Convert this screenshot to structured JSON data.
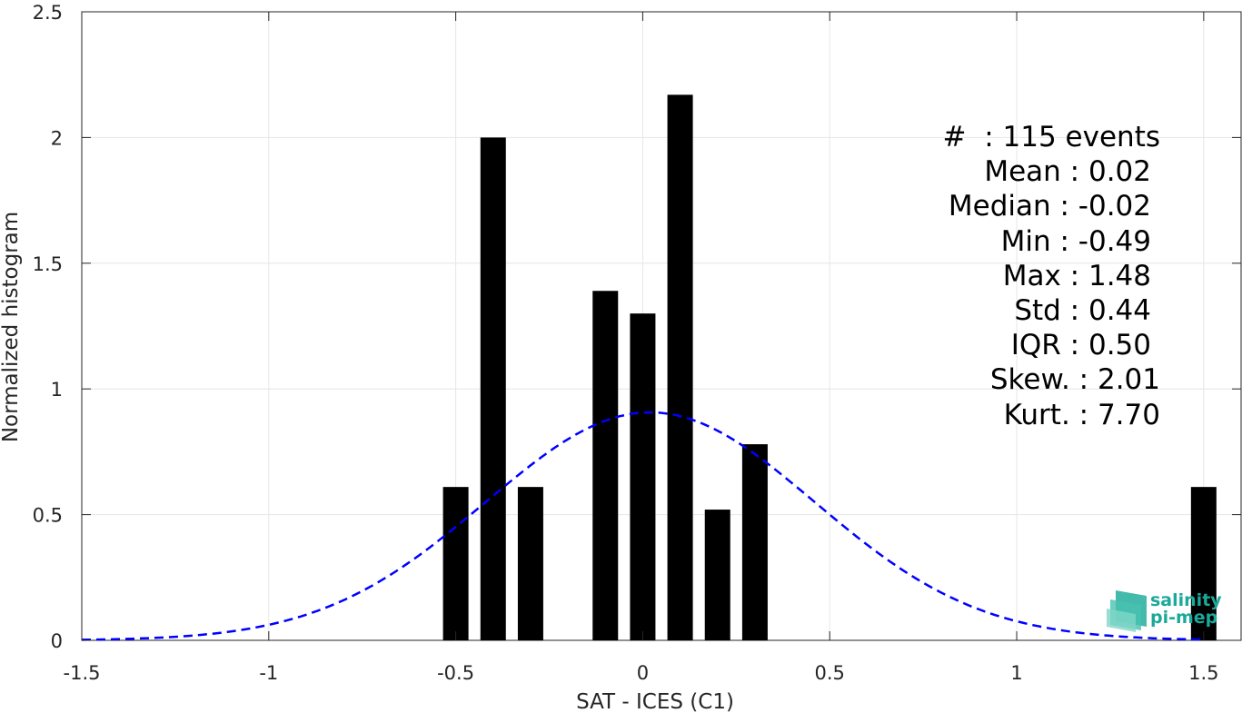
{
  "chart_data": {
    "type": "bar",
    "xlabel": "SAT - ICES (C1)",
    "ylabel": "Normalized histogram",
    "xlim": [
      -1.5,
      1.6
    ],
    "ylim": [
      0,
      2.5
    ],
    "x_ticks": [
      -1.5,
      -1,
      -0.5,
      0,
      0.5,
      1,
      1.5
    ],
    "x_tick_labels": [
      "-1.5",
      "-1",
      "-0.5",
      "0",
      "0.5",
      "1",
      "1.5"
    ],
    "y_ticks": [
      0,
      0.5,
      1,
      1.5,
      2,
      2.5
    ],
    "y_tick_labels": [
      "0",
      "0.5",
      "1",
      "1.5",
      "2",
      "2.5"
    ],
    "grid": true,
    "bar_color": "#000000",
    "bars": {
      "x": [
        -0.5,
        -0.4,
        -0.3,
        -0.1,
        0.0,
        0.1,
        0.2,
        0.3,
        1.5
      ],
      "values": [
        0.61,
        2.0,
        0.61,
        1.39,
        1.3,
        2.17,
        0.52,
        0.78,
        0.61
      ]
    },
    "fit": {
      "style": "dashed",
      "color": "#0000ff",
      "mean": 0.02,
      "std": 0.44,
      "x_range": [
        -1.5,
        1.5
      ]
    },
    "stats": {
      "events": "#  : 115 events",
      "mean": "Mean : 0.02",
      "median": "Median : -0.02",
      "min": "Min : -0.49",
      "max": "Max : 1.48",
      "std": "Std : 0.44",
      "iqr": "IQR : 0.50",
      "skew": "Skew. : 2.01",
      "kurt": "Kurt. : 7.70"
    }
  },
  "logo": {
    "line1": "salinity",
    "line2": "pi-mep",
    "color": "#1aa99a"
  }
}
